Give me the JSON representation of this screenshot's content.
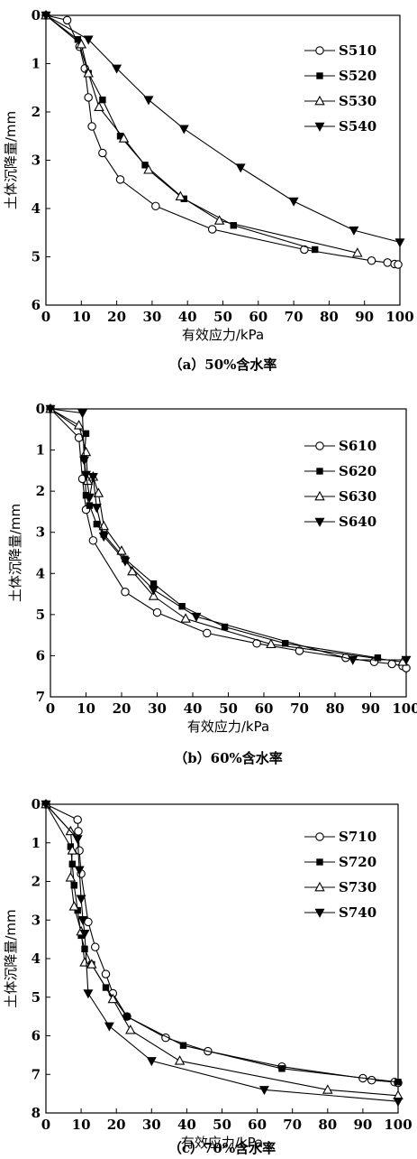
{
  "chart_data": [
    {
      "type": "line",
      "caption": "（a）50%含水率",
      "xlabel": "有效应力/kPa",
      "ylabel": "土体沉降量/mm",
      "xlim": [
        0,
        100
      ],
      "ylim": [
        0,
        6
      ],
      "xticks": [
        0,
        10,
        20,
        30,
        40,
        50,
        60,
        70,
        80,
        90,
        100
      ],
      "yticks": [
        0,
        1,
        2,
        3,
        4,
        5,
        6
      ],
      "y_inverted": true,
      "legend_position": "top-right",
      "series": [
        {
          "name": "S510",
          "marker": "circle-open",
          "x": [
            0,
            6,
            9.5,
            11,
            12,
            13,
            16,
            21,
            31,
            47,
            73,
            92,
            96.5,
            98.5,
            99.5
          ],
          "y": [
            0,
            0.1,
            0.65,
            1.1,
            1.7,
            2.3,
            2.85,
            3.4,
            3.95,
            4.43,
            4.85,
            5.08,
            5.12,
            5.15,
            5.16
          ]
        },
        {
          "name": "S520",
          "marker": "square-filled",
          "x": [
            0,
            9,
            12,
            16,
            21,
            28,
            39,
            53,
            76
          ],
          "y": [
            0,
            0.5,
            1.2,
            1.75,
            2.5,
            3.1,
            3.8,
            4.35,
            4.85
          ]
        },
        {
          "name": "S530",
          "marker": "triangle-open",
          "x": [
            0,
            10,
            12,
            15,
            22,
            29,
            38,
            49,
            88
          ],
          "y": [
            0,
            0.6,
            1.2,
            1.9,
            2.55,
            3.2,
            3.75,
            4.25,
            4.92
          ]
        },
        {
          "name": "S540",
          "marker": "triangle-down-filled",
          "x": [
            0,
            12,
            20,
            29,
            39,
            55,
            70,
            87,
            100
          ],
          "y": [
            0,
            0.5,
            1.1,
            1.75,
            2.35,
            3.15,
            3.85,
            4.45,
            4.7
          ]
        }
      ]
    },
    {
      "type": "line",
      "caption": "（b）60%含水率",
      "xlabel": "有效应力/kPa",
      "ylabel": "土体沉降量/mm",
      "xlim": [
        0,
        100
      ],
      "ylim": [
        0,
        7
      ],
      "xticks": [
        0,
        10,
        20,
        30,
        40,
        50,
        60,
        70,
        80,
        90,
        100
      ],
      "yticks": [
        0,
        1,
        2,
        3,
        4,
        5,
        6,
        7
      ],
      "y_inverted": true,
      "legend_position": "top-right",
      "series": [
        {
          "name": "S610",
          "marker": "circle-open",
          "x": [
            0,
            8,
            9,
            10,
            12,
            21,
            30,
            44,
            58,
            70,
            83,
            91,
            96,
            99,
            100
          ],
          "y": [
            0,
            0.7,
            1.7,
            2.45,
            3.2,
            4.45,
            4.95,
            5.45,
            5.7,
            5.88,
            6.05,
            6.15,
            6.2,
            6.25,
            6.3
          ]
        },
        {
          "name": "S620",
          "marker": "square-filled",
          "x": [
            0,
            10,
            9.5,
            10,
            11,
            13,
            15,
            21,
            29,
            37,
            49,
            66,
            92
          ],
          "y": [
            0,
            0.6,
            1.2,
            2.1,
            2.35,
            2.8,
            3.05,
            3.65,
            4.25,
            4.8,
            5.3,
            5.7,
            6.05
          ]
        },
        {
          "name": "S630",
          "marker": "triangle-open",
          "x": [
            0,
            8,
            10,
            10.5,
            12,
            13.5,
            15,
            20,
            23,
            29,
            38,
            62,
            99
          ],
          "y": [
            0,
            0.4,
            1.05,
            1.75,
            1.65,
            2.05,
            2.85,
            3.45,
            3.95,
            4.55,
            5.1,
            5.72,
            6.15
          ]
        },
        {
          "name": "S640",
          "marker": "triangle-down-filled",
          "x": [
            0,
            9,
            9.5,
            10,
            11,
            12,
            13,
            15,
            21,
            29,
            41,
            85,
            100
          ],
          "y": [
            0,
            0.1,
            1.25,
            1.6,
            2.15,
            1.65,
            2.4,
            3.1,
            3.7,
            4.4,
            5.05,
            6.1,
            6.1
          ]
        }
      ]
    },
    {
      "type": "line",
      "caption": "（c）70%含水率",
      "xlabel": "有效应力/kPa",
      "ylabel": "土体沉降量/mm",
      "xlim": [
        0,
        100
      ],
      "ylim": [
        0,
        8
      ],
      "xticks": [
        0,
        10,
        20,
        30,
        40,
        50,
        60,
        70,
        80,
        90,
        100
      ],
      "yticks": [
        0,
        1,
        2,
        3,
        4,
        5,
        6,
        7,
        8
      ],
      "y_inverted": true,
      "legend_position": "top-right",
      "series": [
        {
          "name": "S710",
          "marker": "circle-open",
          "x": [
            0,
            9,
            9.2,
            9.5,
            10,
            12,
            14,
            17,
            19,
            23,
            34,
            46,
            67,
            90,
            92.5,
            99,
            100
          ],
          "y": [
            0,
            0.4,
            0.7,
            1.2,
            1.8,
            3.05,
            3.7,
            4.4,
            4.9,
            5.5,
            6.05,
            6.4,
            6.8,
            7.1,
            7.15,
            7.2,
            7.22
          ]
        },
        {
          "name": "S720",
          "marker": "square-filled",
          "x": [
            0,
            7,
            7.5,
            8,
            9,
            10,
            11,
            13,
            17,
            23,
            39,
            67,
            100
          ],
          "y": [
            0,
            1.1,
            1.55,
            2.1,
            2.75,
            3.4,
            3.75,
            4.15,
            4.75,
            5.5,
            6.25,
            6.85,
            7.2
          ]
        },
        {
          "name": "S730",
          "marker": "triangle-open",
          "x": [
            0,
            7,
            7.5,
            7,
            8,
            10,
            11,
            13,
            19,
            24,
            38,
            80,
            100
          ],
          "y": [
            0,
            0.7,
            1.2,
            1.9,
            2.65,
            3.3,
            4.1,
            4.15,
            5.05,
            5.85,
            6.65,
            7.4,
            7.55
          ]
        },
        {
          "name": "S740",
          "marker": "triangle-down-filled",
          "x": [
            0,
            9,
            9.5,
            10,
            10.5,
            11,
            12,
            18,
            30,
            62,
            100
          ],
          "y": [
            0,
            0.9,
            1.7,
            2.45,
            3.0,
            3.35,
            4.9,
            5.75,
            6.65,
            7.4,
            7.7
          ]
        }
      ]
    }
  ]
}
